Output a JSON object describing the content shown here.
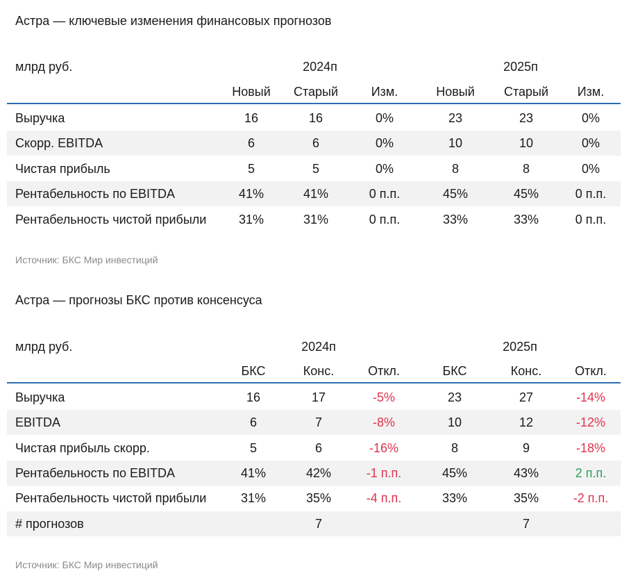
{
  "table1": {
    "title": "Астра — ключевые изменения финансовых прогнозов",
    "unit": "млрд руб.",
    "years": [
      "2024п",
      "2025п"
    ],
    "columns": [
      "Новый",
      "Старый",
      "Изм.",
      "Новый",
      "Старый",
      "Изм."
    ],
    "rows": [
      {
        "label": "Выручка",
        "values": [
          "16",
          "16",
          "0%",
          "23",
          "23",
          "0%"
        ]
      },
      {
        "label": "Скорр. EBITDA",
        "values": [
          "6",
          "6",
          "0%",
          "10",
          "10",
          "0%"
        ]
      },
      {
        "label": "Чистая прибыль",
        "values": [
          "5",
          "5",
          "0%",
          "8",
          "8",
          "0%"
        ]
      },
      {
        "label": "Рентабельность по EBITDA",
        "values": [
          "41%",
          "41%",
          "0 п.п.",
          "45%",
          "45%",
          "0 п.п."
        ]
      },
      {
        "label": "Рентабельность чистой прибыли",
        "values": [
          "31%",
          "31%",
          "0 п.п.",
          "33%",
          "33%",
          "0 п.п."
        ]
      }
    ],
    "source": "Источник: БКС Мир инвестиций"
  },
  "table2": {
    "title": "Астра — прогнозы БКС против консенсуса",
    "unit": "млрд руб.",
    "years": [
      "2024п",
      "2025п"
    ],
    "columns": [
      "БКС",
      "Конс.",
      "Откл.",
      "БКС",
      "Конс.",
      "Откл."
    ],
    "rows": [
      {
        "label": "Выручка",
        "values": [
          "16",
          "17",
          "-5%",
          "23",
          "27",
          "-14%"
        ]
      },
      {
        "label": "EBITDA",
        "values": [
          "6",
          "7",
          "-8%",
          "10",
          "12",
          "-12%"
        ]
      },
      {
        "label": "Чистая прибыль скорр.",
        "values": [
          "5",
          "6",
          "-16%",
          "8",
          "9",
          "-18%"
        ]
      },
      {
        "label": "Рентабельность по EBITDA",
        "values": [
          "41%",
          "42%",
          "-1 п.п.",
          "45%",
          "43%",
          "2 п.п."
        ]
      },
      {
        "label": "Рентабельность чистой прибыли",
        "values": [
          "31%",
          "35%",
          "-4 п.п.",
          "33%",
          "35%",
          "-2 п.п."
        ]
      },
      {
        "label": "# прогнозов",
        "values": [
          "",
          "7",
          "",
          "",
          "7",
          ""
        ]
      }
    ],
    "source": "Источник: БКС Мир инвестиций"
  },
  "colors": {
    "accent_rule": "#2b6cb0",
    "negative": "#e0334f",
    "positive": "#2e9e5b",
    "row_shade": "#f2f2f2"
  }
}
